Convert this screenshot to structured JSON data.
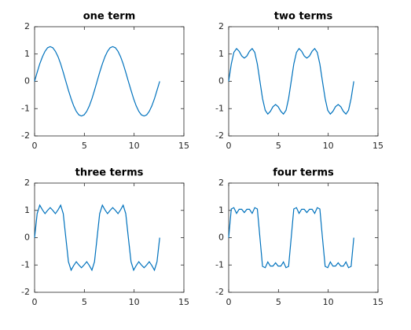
{
  "chart_data": [
    {
      "type": "line",
      "title": "one term",
      "color": "#0072bd",
      "xlim": [
        0,
        15
      ],
      "ylim": [
        -2,
        2
      ],
      "xticks": [
        0,
        5,
        10,
        15
      ],
      "yticks": [
        -2,
        -1,
        0,
        1,
        2
      ],
      "x": [
        0,
        0.26,
        0.52,
        0.79,
        1.05,
        1.31,
        1.57,
        1.83,
        2.09,
        2.36,
        2.62,
        2.88,
        3.14,
        3.4,
        3.67,
        3.93,
        4.19,
        4.45,
        4.71,
        4.97,
        5.24,
        5.5,
        5.76,
        6.02,
        6.28,
        6.54,
        6.81,
        7.07,
        7.33,
        7.59,
        7.85,
        8.12,
        8.38,
        8.64,
        8.9,
        9.16,
        9.42,
        9.69,
        9.95,
        10.21,
        10.47,
        10.73,
        11,
        11.26,
        11.52,
        11.78,
        12.04,
        12.3,
        12.57
      ],
      "values": [
        0,
        0.33,
        0.64,
        0.9,
        1.1,
        1.23,
        1.27,
        1.23,
        1.1,
        0.9,
        0.64,
        0.33,
        0,
        -0.33,
        -0.64,
        -0.9,
        -1.1,
        -1.23,
        -1.27,
        -1.23,
        -1.1,
        -0.9,
        -0.64,
        -0.33,
        0,
        0.33,
        0.64,
        0.9,
        1.1,
        1.23,
        1.27,
        1.23,
        1.1,
        0.9,
        0.64,
        0.33,
        0,
        -0.33,
        -0.64,
        -0.9,
        -1.1,
        -1.23,
        -1.27,
        -1.23,
        -1.1,
        -0.9,
        -0.64,
        -0.33,
        0
      ]
    },
    {
      "type": "line",
      "title": "two terms",
      "color": "#0072bd",
      "xlim": [
        0,
        15
      ],
      "ylim": [
        -2,
        2
      ],
      "xticks": [
        0,
        5,
        10,
        15
      ],
      "yticks": [
        -2,
        -1,
        0,
        1,
        2
      ],
      "x": [
        0,
        0.26,
        0.52,
        0.79,
        1.05,
        1.31,
        1.57,
        1.83,
        2.09,
        2.36,
        2.62,
        2.88,
        3.14,
        3.4,
        3.67,
        3.93,
        4.19,
        4.45,
        4.71,
        4.97,
        5.24,
        5.5,
        5.76,
        6.02,
        6.28,
        6.54,
        6.81,
        7.07,
        7.33,
        7.59,
        7.85,
        8.12,
        8.38,
        8.64,
        8.9,
        9.16,
        9.42,
        9.69,
        9.95,
        10.21,
        10.47,
        10.73,
        11,
        11.26,
        11.52,
        11.78,
        12.04,
        12.3,
        12.57
      ],
      "values": [
        0,
        0.63,
        1.06,
        1.2,
        1.1,
        0.93,
        0.85,
        0.93,
        1.1,
        1.2,
        1.06,
        0.63,
        0,
        -0.63,
        -1.06,
        -1.2,
        -1.1,
        -0.93,
        -0.85,
        -0.93,
        -1.1,
        -1.2,
        -1.06,
        -0.63,
        0,
        0.63,
        1.06,
        1.2,
        1.1,
        0.93,
        0.85,
        0.93,
        1.1,
        1.2,
        1.06,
        0.63,
        0,
        -0.63,
        -1.06,
        -1.2,
        -1.1,
        -0.93,
        -0.85,
        -0.93,
        -1.1,
        -1.2,
        -1.06,
        -0.63,
        0
      ]
    },
    {
      "type": "line",
      "title": "three terms",
      "color": "#0072bd",
      "xlim": [
        0,
        15
      ],
      "ylim": [
        -2,
        2
      ],
      "xticks": [
        0,
        5,
        10,
        15
      ],
      "yticks": [
        -2,
        -1,
        0,
        1,
        2
      ],
      "x": [
        0,
        0.26,
        0.52,
        0.79,
        1.05,
        1.31,
        1.57,
        1.83,
        2.09,
        2.36,
        2.62,
        2.88,
        3.14,
        3.4,
        3.67,
        3.93,
        4.19,
        4.45,
        4.71,
        4.97,
        5.24,
        5.5,
        5.76,
        6.02,
        6.28,
        6.54,
        6.81,
        7.07,
        7.33,
        7.59,
        7.85,
        8.12,
        8.38,
        8.64,
        8.9,
        9.16,
        9.42,
        9.69,
        9.95,
        10.21,
        10.47,
        10.73,
        11,
        11.26,
        11.52,
        11.78,
        12.04,
        12.3,
        12.57
      ],
      "values": [
        0,
        0.88,
        1.19,
        1.02,
        0.88,
        1,
        1.1,
        1,
        0.88,
        1.02,
        1.19,
        0.88,
        0,
        -0.88,
        -1.19,
        -1.02,
        -0.88,
        -1,
        -1.1,
        -1,
        -0.88,
        -1.02,
        -1.19,
        -0.88,
        0,
        0.88,
        1.19,
        1.02,
        0.88,
        1,
        1.1,
        1,
        0.88,
        1.02,
        1.19,
        0.88,
        0,
        -0.88,
        -1.19,
        -1.02,
        -0.88,
        -1,
        -1.1,
        -1,
        -0.88,
        -1.02,
        -1.19,
        -0.88,
        0
      ]
    },
    {
      "type": "line",
      "title": "four terms",
      "color": "#0072bd",
      "xlim": [
        0,
        15
      ],
      "ylim": [
        -2,
        2
      ],
      "xticks": [
        0,
        5,
        10,
        15
      ],
      "yticks": [
        -2,
        -1,
        0,
        1,
        2
      ],
      "x": [
        0,
        0.26,
        0.52,
        0.79,
        1.05,
        1.31,
        1.57,
        1.83,
        2.09,
        2.36,
        2.62,
        2.88,
        3.14,
        3.4,
        3.67,
        3.93,
        4.19,
        4.45,
        4.71,
        4.97,
        5.24,
        5.5,
        5.76,
        6.02,
        6.28,
        6.54,
        6.81,
        7.07,
        7.33,
        7.59,
        7.85,
        8.12,
        8.38,
        8.64,
        8.9,
        9.16,
        9.42,
        9.69,
        9.95,
        10.21,
        10.47,
        10.73,
        11,
        11.26,
        11.52,
        11.78,
        12.04,
        12.3,
        12.57
      ],
      "values": [
        0,
        1.05,
        1.1,
        0.89,
        1.04,
        1.04,
        0.92,
        1.04,
        1.04,
        0.89,
        1.1,
        1.05,
        0,
        -1.05,
        -1.1,
        -0.89,
        -1.04,
        -1.04,
        -0.92,
        -1.04,
        -1.04,
        -0.89,
        -1.1,
        -1.05,
        0,
        1.05,
        1.1,
        0.89,
        1.04,
        1.04,
        0.92,
        1.04,
        1.04,
        0.89,
        1.1,
        1.05,
        0,
        -1.05,
        -1.1,
        -0.89,
        -1.04,
        -1.04,
        -0.92,
        -1.04,
        -1.04,
        -0.89,
        -1.1,
        -1.05,
        0
      ]
    }
  ]
}
